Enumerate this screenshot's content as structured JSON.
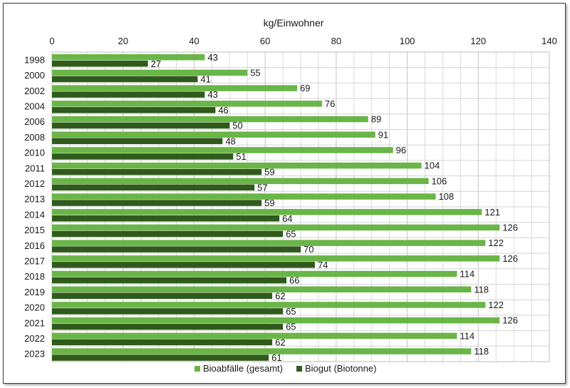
{
  "chart_data": {
    "type": "bar",
    "orientation": "horizontal",
    "xlabel": "kg/Einwohner",
    "xlim": [
      0,
      140
    ],
    "x_ticks": [
      0,
      20,
      40,
      60,
      80,
      100,
      120,
      140
    ],
    "minor_gridline_step": 5,
    "grid": true,
    "legend_position": "bottom",
    "categories": [
      "1998",
      "2000",
      "2002",
      "2004",
      "2006",
      "2008",
      "2010",
      "2011",
      "2012",
      "2013",
      "2014",
      "2015",
      "2016",
      "2017",
      "2018",
      "2019",
      "2020",
      "2021",
      "2022",
      "2023"
    ],
    "series": [
      {
        "name": "Bioabfälle (gesamt)",
        "color": "#6ab547",
        "values": [
          43,
          55,
          69,
          76,
          89,
          91,
          96,
          104,
          106,
          108,
          121,
          126,
          122,
          126,
          114,
          118,
          122,
          126,
          114,
          118
        ]
      },
      {
        "name": "Biogut (Biotonne)",
        "color": "#2f5a1b",
        "values": [
          27,
          41,
          43,
          46,
          50,
          48,
          51,
          59,
          57,
          59,
          64,
          65,
          70,
          74,
          66,
          62,
          65,
          65,
          62,
          61
        ]
      }
    ]
  }
}
